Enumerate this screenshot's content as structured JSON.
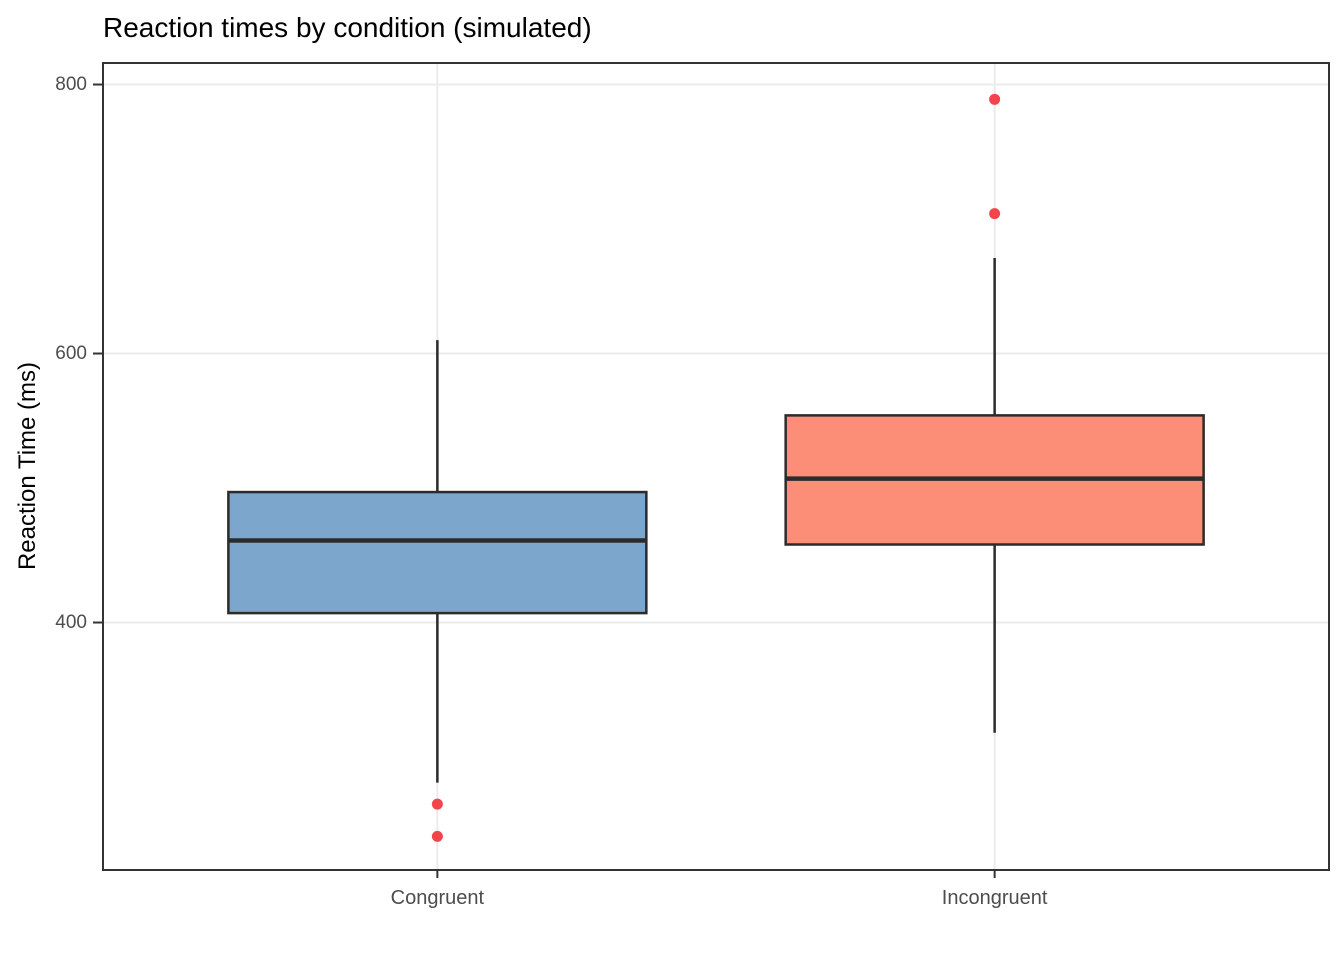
{
  "chart_data": {
    "type": "boxplot",
    "title": "Reaction times by condition (simulated)",
    "ylabel": "Reaction Time (ms)",
    "xlabel": "",
    "categories": [
      "Congruent",
      "Incongruent"
    ],
    "yticks": [
      400,
      600,
      800
    ],
    "ylim": [
      216,
      816
    ],
    "grid": "major gridlines only, horizontal at yticks and vertical at category centers",
    "legend_position": "none",
    "series": [
      {
        "name": "Congruent",
        "fill": "#7CA6CB",
        "lower_whisker": 281,
        "q1": 407,
        "median": 461,
        "q3": 497,
        "upper_whisker": 610,
        "outliers": [
          241,
          265
        ]
      },
      {
        "name": "Incongruent",
        "fill": "#FC8D76",
        "lower_whisker": 318,
        "q1": 458,
        "median": 507,
        "q3": 554,
        "upper_whisker": 671,
        "outliers": [
          704,
          789
        ]
      }
    ],
    "colors": {
      "outlier": "#F3434B",
      "box_stroke": "#2B2B2B",
      "grid": "#EBEBEB",
      "tick_text": "#4D4D4D",
      "axis_tick": "#333333",
      "panel_border": "#333333",
      "title_text": "#000000",
      "panel_background": "#FFFFFF"
    }
  }
}
